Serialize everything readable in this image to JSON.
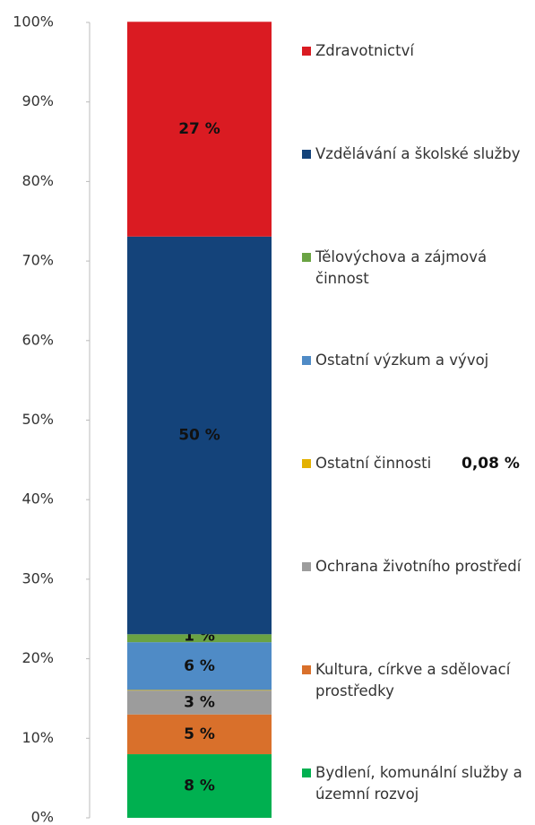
{
  "chart_data": {
    "type": "stacked_bar",
    "categories": [
      null
    ],
    "series": [
      {
        "name": "Bydlení, komunální služby a územní rozvoj",
        "color": "#00b050",
        "values": [
          8
        ],
        "value_labels": [
          "8 %"
        ]
      },
      {
        "name": "Kultura, církve a sdělovací prostředky",
        "color": "#d9702b",
        "values": [
          5
        ],
        "value_labels": [
          "5 %"
        ]
      },
      {
        "name": "Ochrana životního prostředí",
        "color": "#9c9c9c",
        "values": [
          3
        ],
        "value_labels": [
          "3 %"
        ]
      },
      {
        "name": "Ostatní činnosti",
        "color": "#e3b100",
        "values": [
          0.08
        ],
        "value_labels": [
          "0,08 %"
        ]
      },
      {
        "name": "Ostatní výzkum a vývoj",
        "color": "#4f8bc6",
        "values": [
          6
        ],
        "value_labels": [
          "6 %"
        ]
      },
      {
        "name": "Tělovýchova a zájmová činnost",
        "color": "#6aa343",
        "values": [
          1
        ],
        "value_labels": [
          "1 %"
        ]
      },
      {
        "name": "Vzdělávání a školské služby",
        "color": "#14437a",
        "values": [
          50
        ],
        "value_labels": [
          "50 %"
        ]
      },
      {
        "name": "Zdravotnictví",
        "color": "#da1b22",
        "values": [
          27
        ],
        "value_labels": [
          "27 %"
        ]
      }
    ],
    "ylim": [
      0,
      100
    ],
    "yticks": [
      {
        "value": 0,
        "label": "0%"
      },
      {
        "value": 10,
        "label": "10%"
      },
      {
        "value": 20,
        "label": "20%"
      },
      {
        "value": 30,
        "label": "30%"
      },
      {
        "value": 40,
        "label": "40%"
      },
      {
        "value": 50,
        "label": "50%"
      },
      {
        "value": 60,
        "label": "60%"
      },
      {
        "value": 70,
        "label": "70%"
      },
      {
        "value": 80,
        "label": "80%"
      },
      {
        "value": 90,
        "label": "90%"
      },
      {
        "value": 100,
        "label": "100%"
      }
    ],
    "legend": "right"
  }
}
